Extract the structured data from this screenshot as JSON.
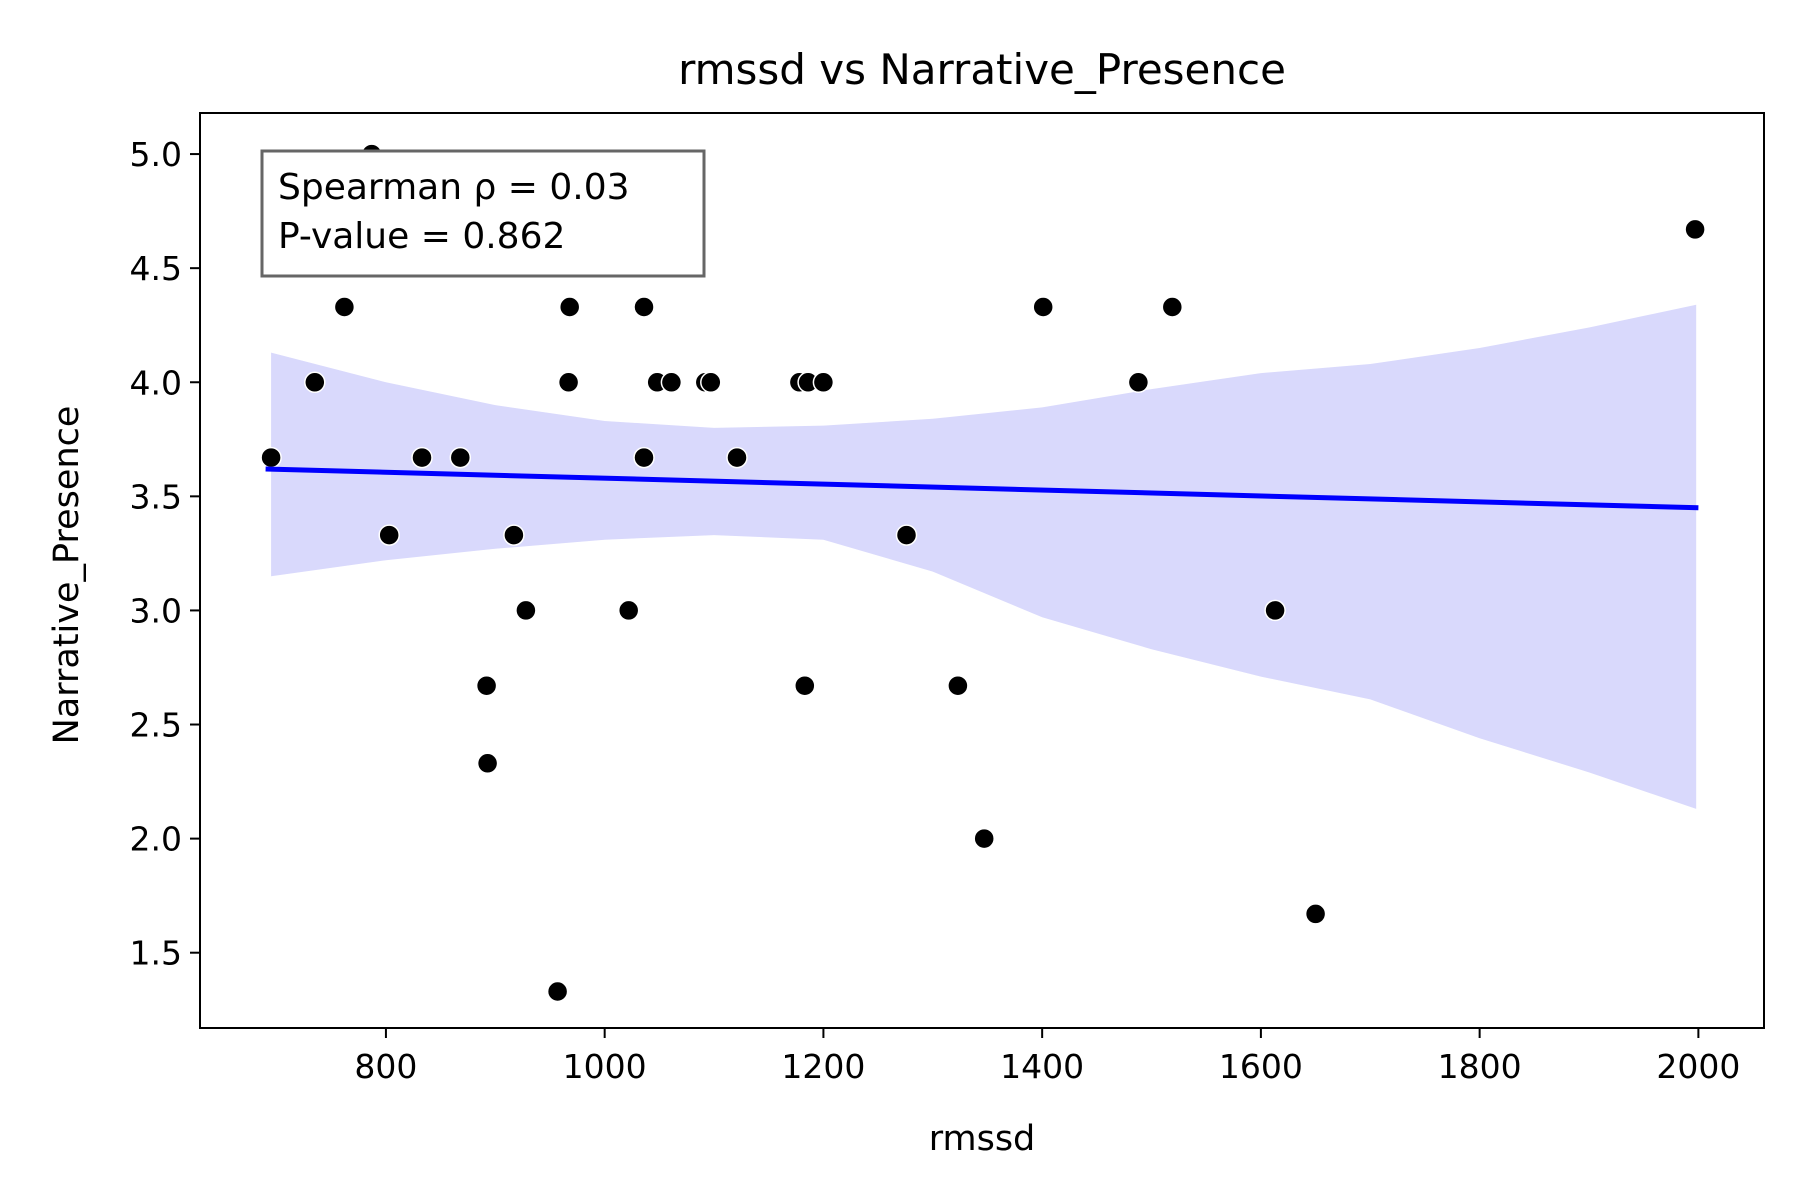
{
  "chart_data": {
    "type": "scatter",
    "title": "rmssd vs Narrative_Presence",
    "xlabel": "rmssd",
    "ylabel": "Narrative_Presence",
    "xlim": [
      630,
      2060
    ],
    "ylim": [
      1.17,
      5.18
    ],
    "xticks": [
      800,
      1000,
      1200,
      1400,
      1600,
      1800,
      2000
    ],
    "yticks": [
      1.5,
      2.0,
      2.5,
      3.0,
      3.5,
      4.0,
      4.5,
      5.0
    ],
    "xtick_labels": [
      "800",
      "1000",
      "1200",
      "1400",
      "1600",
      "1800",
      "2000"
    ],
    "ytick_labels": [
      "1.5",
      "2.0",
      "2.5",
      "3.0",
      "3.5",
      "4.0",
      "4.5",
      "5.0"
    ],
    "grid": false,
    "annotation": {
      "lines": [
        "Spearman ρ = 0.03",
        "P-value = 0.862"
      ],
      "placement": "top-left"
    },
    "colors": {
      "points": "#000000",
      "line": "#0000ff",
      "band": "#d9d9fc"
    },
    "points": [
      {
        "x": 695,
        "y": 3.67
      },
      {
        "x": 735,
        "y": 4.0
      },
      {
        "x": 762,
        "y": 4.33
      },
      {
        "x": 787,
        "y": 5.0
      },
      {
        "x": 803,
        "y": 3.33
      },
      {
        "x": 833,
        "y": 3.67
      },
      {
        "x": 868,
        "y": 3.67
      },
      {
        "x": 892,
        "y": 2.67
      },
      {
        "x": 893,
        "y": 2.33
      },
      {
        "x": 917,
        "y": 3.33
      },
      {
        "x": 928,
        "y": 3.0
      },
      {
        "x": 957,
        "y": 1.33
      },
      {
        "x": 967,
        "y": 4.0
      },
      {
        "x": 968,
        "y": 4.33
      },
      {
        "x": 1022,
        "y": 3.0
      },
      {
        "x": 1036,
        "y": 4.33
      },
      {
        "x": 1036,
        "y": 3.67
      },
      {
        "x": 1048,
        "y": 4.0
      },
      {
        "x": 1061,
        "y": 4.0
      },
      {
        "x": 1092,
        "y": 4.0
      },
      {
        "x": 1097,
        "y": 4.0
      },
      {
        "x": 1121,
        "y": 3.67
      },
      {
        "x": 1178,
        "y": 4.0
      },
      {
        "x": 1183,
        "y": 2.67
      },
      {
        "x": 1186,
        "y": 4.0
      },
      {
        "x": 1200,
        "y": 4.0
      },
      {
        "x": 1276,
        "y": 3.33
      },
      {
        "x": 1323,
        "y": 2.67
      },
      {
        "x": 1347,
        "y": 2.0
      },
      {
        "x": 1401,
        "y": 4.33
      },
      {
        "x": 1488,
        "y": 4.0
      },
      {
        "x": 1519,
        "y": 4.33
      },
      {
        "x": 1613,
        "y": 3.0
      },
      {
        "x": 1650,
        "y": 1.67
      },
      {
        "x": 1997,
        "y": 4.67
      }
    ],
    "regression": {
      "x": [
        690,
        2000
      ],
      "y": [
        3.62,
        3.45
      ]
    },
    "confidence_band": {
      "x": [
        695,
        800,
        900,
        1000,
        1100,
        1200,
        1300,
        1400,
        1500,
        1600,
        1700,
        1800,
        1900,
        1998
      ],
      "upper": [
        4.13,
        4.0,
        3.9,
        3.83,
        3.8,
        3.81,
        3.84,
        3.89,
        3.97,
        4.04,
        4.08,
        4.15,
        4.24,
        4.34
      ],
      "lower": [
        3.15,
        3.22,
        3.27,
        3.31,
        3.33,
        3.31,
        3.17,
        2.97,
        2.83,
        2.71,
        2.61,
        2.44,
        2.29,
        2.13
      ]
    }
  }
}
